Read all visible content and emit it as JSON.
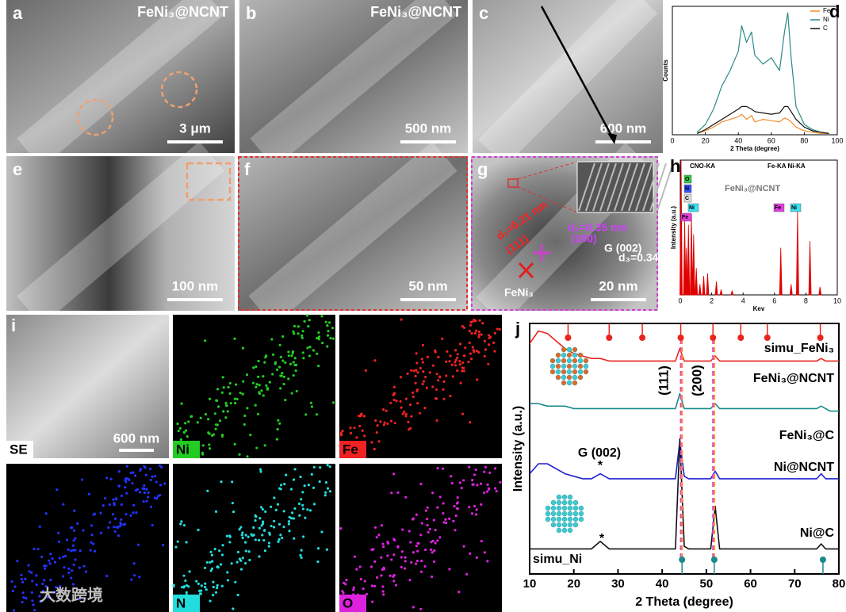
{
  "panels": [
    {
      "label": "a",
      "caption": "FeNi₃@NCNT",
      "scale_bar": "3 μm"
    },
    {
      "label": "b",
      "caption": "FeNi₃@NCNT",
      "scale_bar": "500 nm"
    },
    {
      "label": "c",
      "scale_bar": "600 nm"
    },
    {
      "label": "e",
      "scale_bar": "100 nm"
    },
    {
      "label": "f",
      "scale_bar": "50 nm"
    },
    {
      "label": "g",
      "scale_bar": "20 nm",
      "annotations": [
        "d₁=0.21 nm",
        "(111)",
        "d₂=0.35 nm",
        "(100)",
        "G (002)",
        "d₃=0.34 nm",
        "FeNi₃"
      ]
    },
    {
      "label": "i",
      "scale_bar": "600 nm",
      "maps": [
        "SE",
        "Ni",
        "Fe",
        "N",
        "O"
      ]
    }
  ],
  "chart_data": [
    {
      "type": "line",
      "label": "d",
      "xlabel": "2 Theta (degree)",
      "ylabel": "Counts",
      "xlim": [
        0,
        100
      ],
      "xticks": [
        0,
        20,
        40,
        60,
        80,
        100
      ],
      "ylim": [
        0,
        100
      ],
      "yticks": [],
      "legend": "upper right",
      "x": [
        15,
        20,
        25,
        30,
        35,
        40,
        42,
        45,
        48,
        50,
        55,
        60,
        65,
        68,
        70,
        72,
        75,
        80,
        85,
        90,
        95
      ],
      "series": [
        {
          "name": "Fe",
          "color": "#f28c28",
          "values": [
            1,
            3,
            6,
            10,
            12,
            14,
            16,
            12,
            15,
            10,
            12,
            11,
            10,
            13,
            12,
            10,
            6,
            3,
            2,
            1,
            1
          ]
        },
        {
          "name": "Ni",
          "color": "#2a8a86",
          "values": [
            2,
            8,
            20,
            38,
            50,
            65,
            85,
            72,
            80,
            62,
            55,
            60,
            50,
            80,
            95,
            60,
            22,
            8,
            4,
            2,
            1
          ]
        },
        {
          "name": "C",
          "color": "#111111",
          "values": [
            1,
            4,
            8,
            12,
            16,
            20,
            22,
            22,
            20,
            18,
            17,
            16,
            17,
            22,
            22,
            18,
            12,
            6,
            3,
            2,
            1
          ]
        }
      ]
    },
    {
      "type": "spike",
      "label": "h",
      "xlabel": "Kev",
      "ylabel": "Intensity (a.u.)",
      "xlim": [
        0,
        10
      ],
      "xticks": [
        0,
        2,
        4,
        6,
        8,
        10
      ],
      "ylim": [
        0,
        100
      ],
      "yticks": [],
      "color": "#e00000",
      "annotations": [
        "CNO-KA",
        "Fe-KA Ni-KA",
        "FeNi₃@NCNT"
      ],
      "peak_labels": [
        {
          "text": "O",
          "color": "#2ecc40"
        },
        {
          "text": "N",
          "color": "#3355ff"
        },
        {
          "text": "C",
          "color": "#dddddd"
        },
        {
          "text": "Fe",
          "color": "#e040e0"
        },
        {
          "text": "Ni",
          "color": "#40e0f0"
        },
        {
          "text": "Fe",
          "color": "#e040e0"
        },
        {
          "text": "Ni",
          "color": "#40e0f0"
        }
      ],
      "x": [
        0.05,
        0.28,
        0.39,
        0.52,
        0.71,
        0.85,
        1.02,
        1.25,
        1.49,
        1.74,
        2.3,
        2.6,
        3.3,
        6.4,
        7.06,
        7.47,
        8.26,
        8.9
      ],
      "values": [
        100,
        55,
        35,
        52,
        60,
        45,
        20,
        8,
        14,
        16,
        10,
        4,
        3,
        35,
        8,
        62,
        40,
        6
      ]
    },
    {
      "type": "line",
      "label": "j",
      "xlabel": "2 Theta (degree)",
      "ylabel": "Intensity (a.u.)",
      "xlim": [
        10,
        80
      ],
      "xticks": [
        10,
        20,
        30,
        40,
        50,
        60,
        70,
        80
      ],
      "ylim": [
        0,
        100
      ],
      "yticks": [],
      "annotations": [
        "(111)",
        "(200)",
        "G (002)",
        "*",
        "*"
      ],
      "x": [
        10,
        12,
        14,
        16,
        18,
        20,
        22,
        24,
        26,
        28,
        30,
        32,
        34,
        36,
        38,
        40,
        42,
        43,
        44,
        45,
        46,
        48,
        50,
        51,
        52,
        53,
        54,
        56,
        58,
        60,
        62,
        64,
        66,
        68,
        70,
        72,
        74,
        75,
        76,
        77,
        78,
        80
      ],
      "series": [
        {
          "name": "FeNi₃@NCNT",
          "color": "#e8251f",
          "values": [
            92,
            97,
            96,
            93,
            90,
            88,
            87,
            86,
            86,
            85,
            85,
            85,
            85,
            85,
            85,
            85,
            85,
            85,
            90,
            85,
            85,
            85,
            85,
            85,
            87,
            85,
            85,
            85,
            85,
            85,
            85,
            85,
            85,
            85,
            85,
            85,
            85,
            85,
            86,
            85,
            85,
            85
          ]
        },
        {
          "name": "FeNi₃@C",
          "color": "#1a8a8a",
          "values": [
            68,
            68,
            67,
            67,
            67,
            66,
            66,
            66,
            66,
            66,
            66,
            66,
            66,
            66,
            66,
            66,
            66,
            66,
            72,
            66,
            66,
            66,
            66,
            66,
            68,
            66,
            66,
            66,
            66,
            66,
            66,
            66,
            66,
            66,
            66,
            66,
            66,
            66,
            67,
            66,
            65,
            65
          ]
        },
        {
          "name": "Ni@NCNT",
          "color": "#2020d0",
          "values": [
            40,
            44,
            44,
            42,
            40,
            39,
            38,
            38,
            40,
            38,
            38,
            38,
            38,
            38,
            38,
            38,
            38,
            38,
            53,
            39,
            38,
            38,
            38,
            38,
            41,
            38,
            38,
            38,
            38,
            38,
            38,
            38,
            38,
            38,
            38,
            38,
            38,
            38,
            40,
            38,
            38,
            38
          ]
        },
        {
          "name": "Ni@C",
          "color": "#111111",
          "values": [
            10,
            10,
            10,
            10,
            10,
            10,
            10,
            10,
            13,
            10,
            10,
            10,
            10,
            10,
            10,
            10,
            10,
            10,
            54,
            11,
            10,
            10,
            10,
            10,
            27,
            10,
            10,
            10,
            10,
            10,
            10,
            10,
            10,
            10,
            10,
            10,
            10,
            10,
            12,
            10,
            10,
            10
          ]
        }
      ],
      "references": [
        {
          "name": "simu_FeNi₃",
          "color": "#e8251f",
          "positions": [
            18.7,
            28,
            35.5,
            44.2,
            51.5,
            57.8,
            63.8,
            75.8
          ]
        },
        {
          "name": "simu_Ni",
          "color": "#1a8a8a",
          "positions": [
            44.5,
            51.8,
            76.4
          ]
        }
      ],
      "guide_lines": [
        {
          "x": 44.2,
          "color": "#e040e0"
        },
        {
          "x": 51.5,
          "color": "#e040e0"
        },
        {
          "x": 44.5,
          "color": "#ff9020"
        },
        {
          "x": 51.8,
          "color": "#ff9020"
        }
      ]
    }
  ],
  "watermark": "大数跨境"
}
